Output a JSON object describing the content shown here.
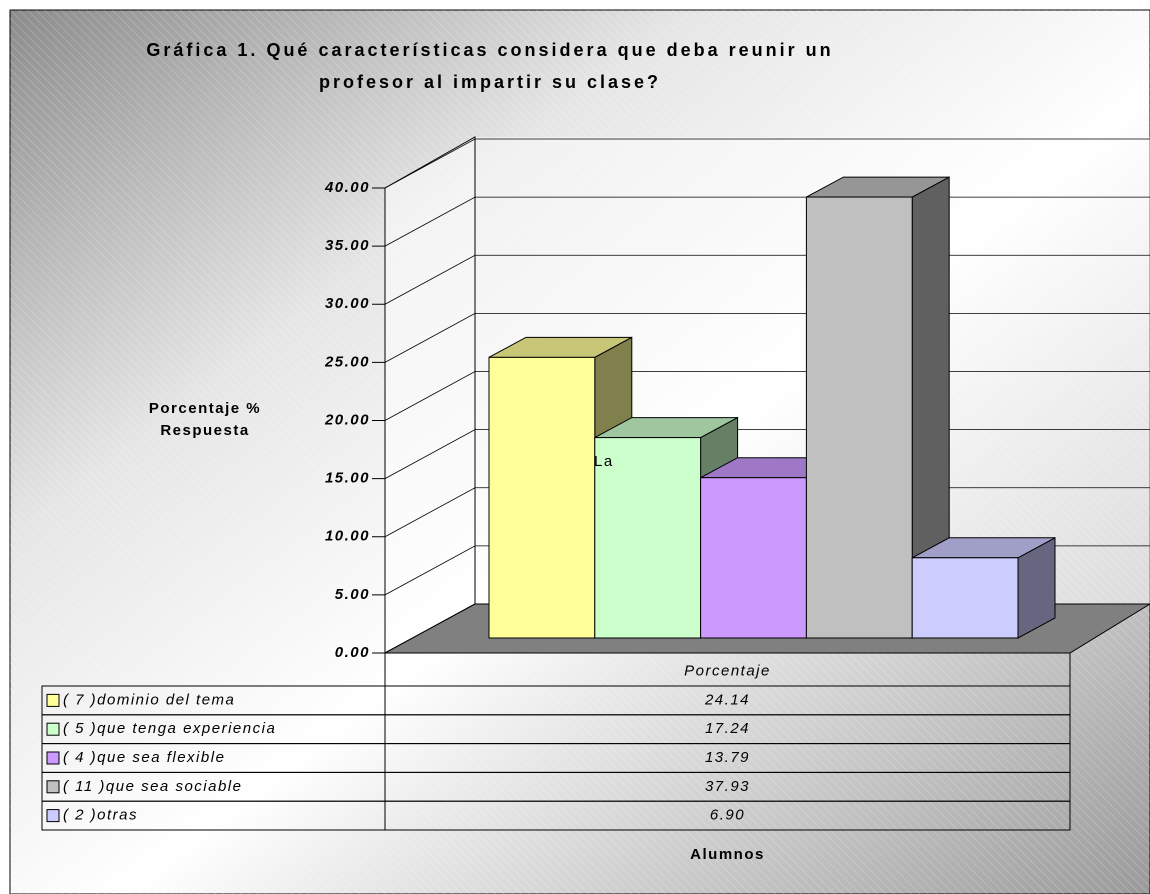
{
  "chart_data": {
    "type": "bar3d",
    "title": "Gráfica 1. Qué características considera que deba reunir un\nprofesor al impartir su clase?",
    "ylabel": "Porcentaje %\nRespuesta",
    "xlabel": "Alumnos",
    "annotation": "La",
    "categories": [
      "Porcentaje"
    ],
    "series": [
      {
        "name": "( 7 )dominio del tema",
        "color": "#ffff99",
        "values": [
          24.14
        ]
      },
      {
        "name": "( 5 )que tenga experiencia",
        "color": "#ccffcc",
        "values": [
          17.24
        ]
      },
      {
        "name": "( 4 )que sea flexible",
        "color": "#cc99ff",
        "values": [
          13.79
        ]
      },
      {
        "name": "( 11 )que sea sociable",
        "color": "#c0c0c0",
        "values": [
          37.93
        ]
      },
      {
        "name": "( 2 )otras",
        "color": "#ccccff",
        "values": [
          6.9
        ],
        "value_labels": [
          "6.90"
        ]
      }
    ],
    "ylim": [
      0,
      40
    ],
    "yticks": [
      {
        "value": 0,
        "label": "0.00"
      },
      {
        "value": 5,
        "label": "5.00"
      },
      {
        "value": 10,
        "label": "10.00"
      },
      {
        "value": 15,
        "label": "15.00"
      },
      {
        "value": 20,
        "label": "20.00"
      },
      {
        "value": 25,
        "label": "25.00"
      },
      {
        "value": 30,
        "label": "30.00"
      },
      {
        "value": 35,
        "label": "35.00"
      },
      {
        "value": 40,
        "label": "40.00"
      }
    ],
    "grid": true,
    "data_table": true
  }
}
